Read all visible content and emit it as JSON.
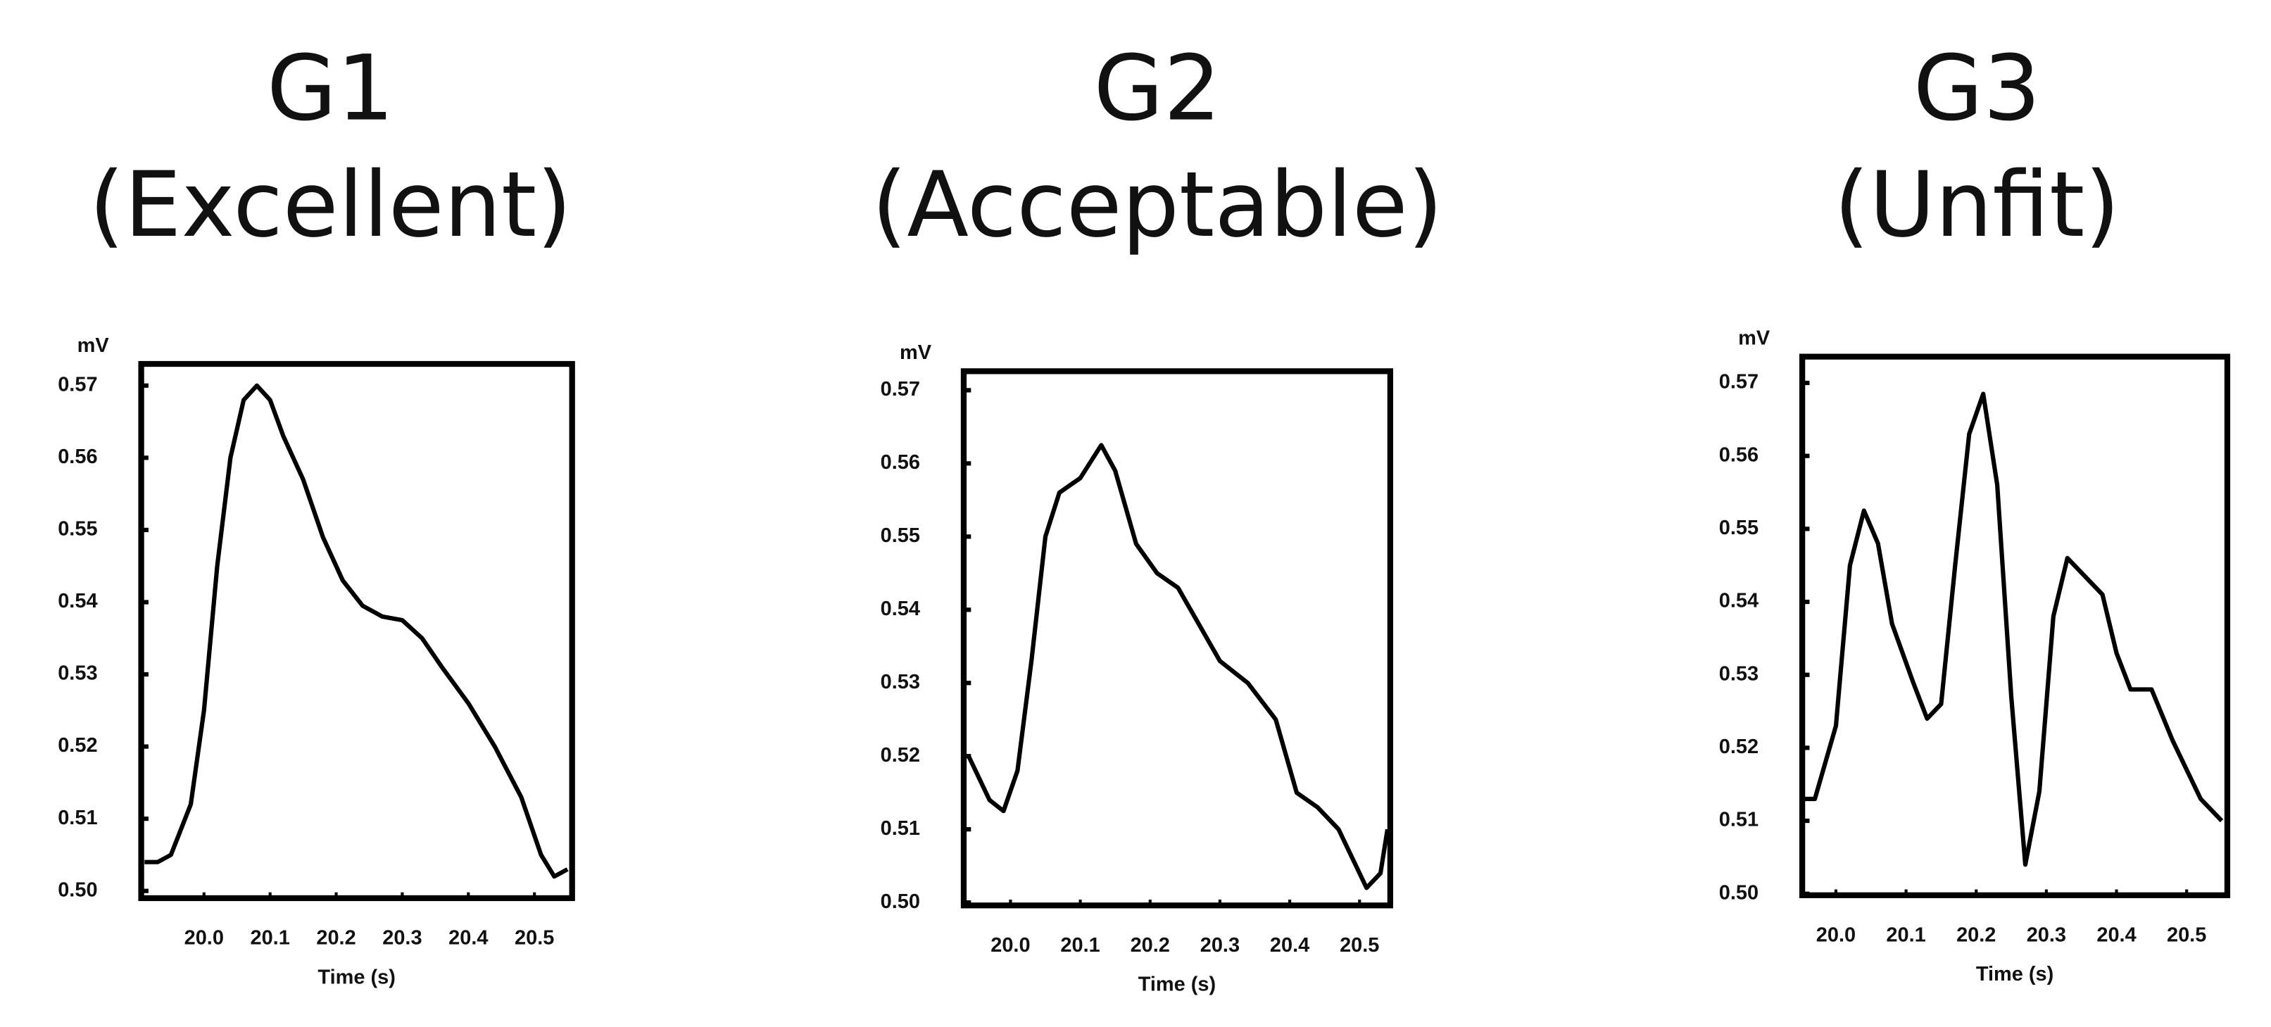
{
  "chart_data": [
    {
      "type": "line",
      "title": "G1",
      "subtitle": "(Excellent)",
      "y_label": "mV",
      "x_label": "Time (s)",
      "xlim": [
        19.905,
        20.557
      ],
      "ylim": [
        0.499,
        0.573
      ],
      "xticks": [
        {
          "value": 20,
          "label": "20.0"
        },
        20.1,
        20.2,
        20.3,
        20.4,
        20.5
      ],
      "yticks": [
        {
          "value": 0.5,
          "label": "0.50"
        },
        0.51,
        0.52,
        0.53,
        0.54,
        0.55,
        0.56,
        0.57
      ],
      "series": [
        {
          "color": "#000000",
          "x": [
            19.91,
            19.93,
            19.95,
            19.98,
            20.0,
            20.02,
            20.04,
            20.06,
            20.08,
            20.1,
            20.12,
            20.15,
            20.18,
            20.21,
            20.24,
            20.27,
            20.3,
            20.33,
            20.36,
            20.4,
            20.44,
            20.48,
            20.51,
            20.53,
            20.55
          ],
          "values": [
            0.504,
            0.504,
            0.505,
            0.512,
            0.525,
            0.545,
            0.56,
            0.568,
            0.57,
            0.568,
            0.563,
            0.557,
            0.549,
            0.543,
            0.5395,
            0.538,
            0.5375,
            0.535,
            0.531,
            0.526,
            0.52,
            0.513,
            0.505,
            0.502,
            0.503
          ]
        }
      ]
    },
    {
      "type": "line",
      "title": "G2",
      "subtitle": "(Acceptable)",
      "y_label": "mV",
      "x_label": "Time (s)",
      "xlim": [
        19.933,
        20.544
      ],
      "ylim": [
        0.4996,
        0.5726
      ],
      "xticks": [
        {
          "value": 20,
          "label": "20.0"
        },
        20.1,
        20.2,
        20.3,
        20.4,
        20.5
      ],
      "yticks": [
        {
          "value": 0.5,
          "label": "0.50"
        },
        0.51,
        0.52,
        0.53,
        0.54,
        0.55,
        0.56,
        0.57
      ],
      "series": [
        {
          "color": "#000000",
          "x": [
            19.94,
            19.97,
            19.99,
            20.01,
            20.03,
            20.05,
            20.07,
            20.1,
            20.13,
            20.15,
            20.18,
            20.21,
            20.24,
            20.27,
            20.3,
            20.34,
            20.38,
            20.41,
            20.44,
            20.47,
            20.51,
            20.53,
            20.54
          ],
          "values": [
            0.52,
            0.514,
            0.5125,
            0.518,
            0.533,
            0.55,
            0.556,
            0.558,
            0.5625,
            0.559,
            0.549,
            0.545,
            0.543,
            0.538,
            0.533,
            0.53,
            0.525,
            0.515,
            0.513,
            0.51,
            0.502,
            0.504,
            0.51
          ]
        }
      ]
    },
    {
      "type": "line",
      "title": "G3",
      "subtitle": "(Unfit)",
      "y_label": "mV",
      "x_label": "Time (s)",
      "xlim": [
        19.952,
        20.558
      ],
      "ylim": [
        0.4998,
        0.5736
      ],
      "xticks": [
        {
          "value": 20,
          "label": "20.0"
        },
        20.1,
        20.2,
        20.3,
        20.4,
        20.5
      ],
      "yticks": [
        {
          "value": 0.5,
          "label": "0.50"
        },
        0.51,
        0.52,
        0.53,
        0.54,
        0.55,
        0.56,
        0.57
      ],
      "series": [
        {
          "color": "#000000",
          "x": [
            19.955,
            19.97,
            20.0,
            20.02,
            20.04,
            20.06,
            20.08,
            20.11,
            20.13,
            20.15,
            20.17,
            20.19,
            20.21,
            20.23,
            20.25,
            20.27,
            20.29,
            20.31,
            20.33,
            20.35,
            20.38,
            20.4,
            20.42,
            20.45,
            20.48,
            20.52,
            20.55
          ],
          "values": [
            0.513,
            0.513,
            0.523,
            0.545,
            0.5525,
            0.548,
            0.537,
            0.529,
            0.524,
            0.526,
            0.545,
            0.563,
            0.5685,
            0.556,
            0.527,
            0.504,
            0.514,
            0.538,
            0.546,
            0.544,
            0.541,
            0.533,
            0.528,
            0.528,
            0.521,
            0.513,
            0.51
          ]
        }
      ]
    }
  ]
}
